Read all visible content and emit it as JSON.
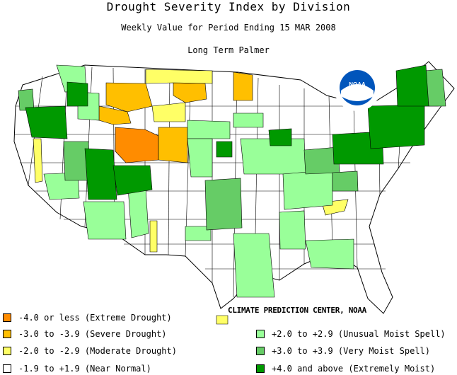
{
  "header": {
    "title": "Drought Severity Index by Division",
    "subtitle": "Weekly Value for Period Ending 15 MAR 2008",
    "index_name": "Long Term Palmer"
  },
  "logo": {
    "text": "NOAA"
  },
  "credit": "CLIMATE PREDICTION CENTER, NOAA",
  "colors": {
    "extreme_drought": "#ff8c00",
    "severe_drought": "#ffbf00",
    "moderate_drought": "#ffff66",
    "near_normal": "#ffffff",
    "unusual_moist": "#99ff99",
    "very_moist": "#66cc66",
    "extremely_moist": "#009900",
    "border": "#000000"
  },
  "legend": {
    "left": [
      {
        "label": "-4.0 or less (Extreme Drought)",
        "color": "#ff8c00"
      },
      {
        "label": "-3.0 to -3.9 (Severe Drought)",
        "color": "#ffbf00"
      },
      {
        "label": "-2.0 to -2.9 (Moderate Drought)",
        "color": "#ffff66"
      },
      {
        "label": "-1.9 to +1.9 (Near Normal)",
        "color": "#ffffff"
      }
    ],
    "right": [
      {
        "label": "+2.0 to +2.9 (Unusual Moist Spell)",
        "color": "#99ff99"
      },
      {
        "label": "+3.0 to +3.9 (Very Moist Spell)",
        "color": "#66cc66"
      },
      {
        "label": "+4.0 and above (Extremely Moist)",
        "color": "#009900"
      }
    ]
  }
}
